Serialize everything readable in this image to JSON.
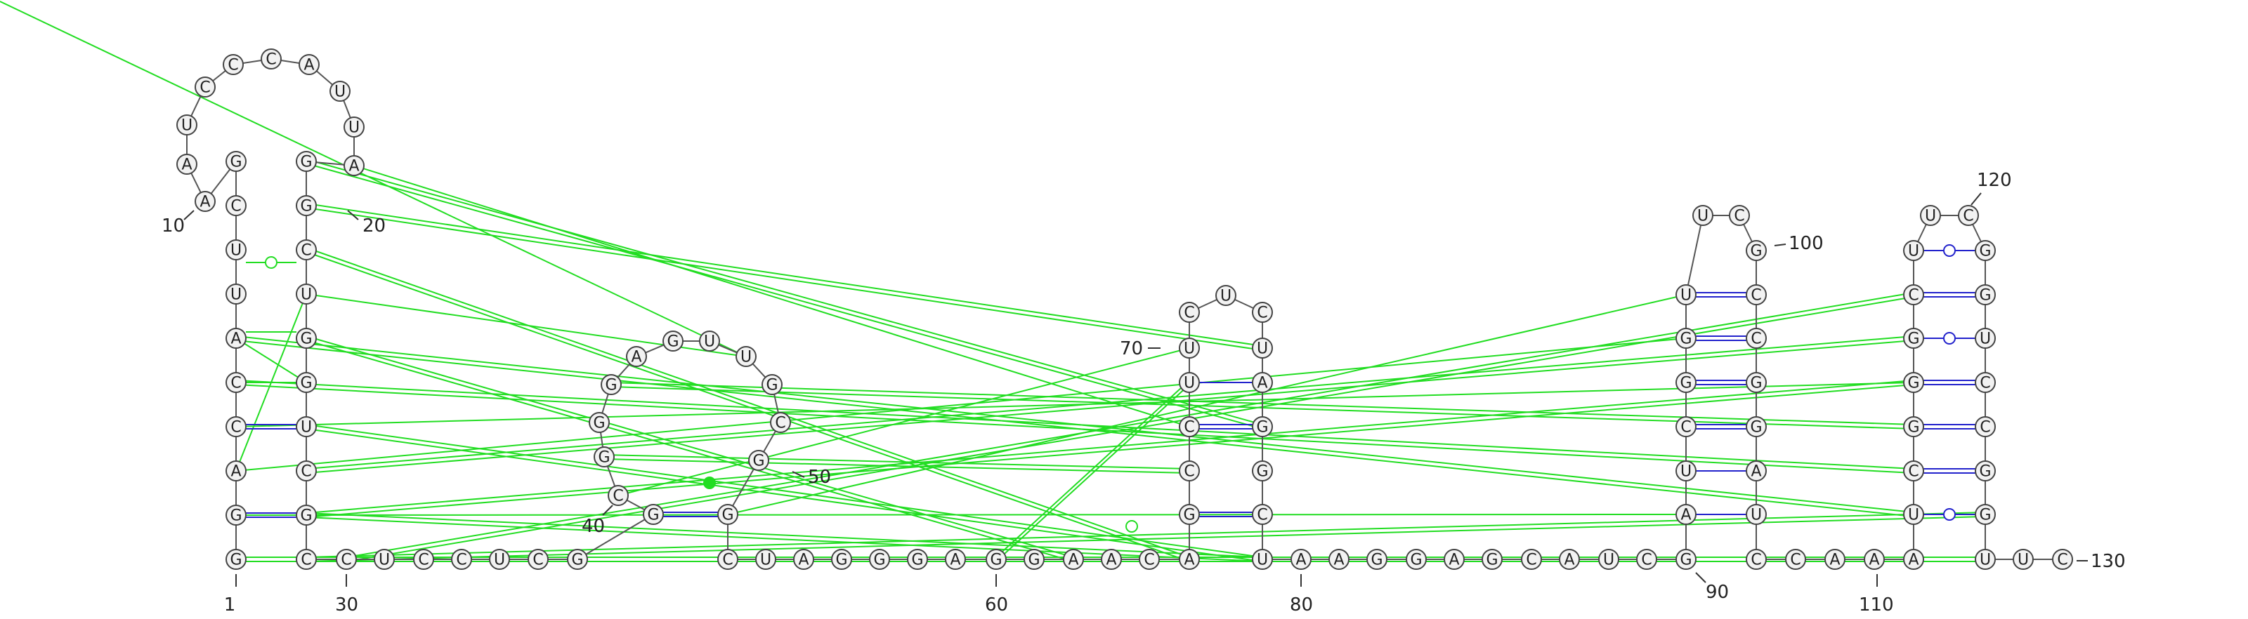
{
  "diagram": {
    "type": "rna-secondary-structure",
    "sequence_labels": {
      "n1": "1",
      "n10": "10",
      "n20": "20",
      "n30": "30",
      "n40": "40",
      "n50": "50",
      "n60": "60",
      "n70": "70",
      "n80": "80",
      "n90": "90",
      "n100": "100",
      "n110": "110",
      "n120": "120",
      "n130": "130"
    },
    "colors": {
      "backbone": "#555555",
      "canonical_pair": "#2222cc",
      "tertiary_interaction": "#22dd22",
      "nucleotide_fill": "#f2f2f2",
      "nucleotide_stroke": "#444444"
    },
    "hairpin1": {
      "left": [
        "G",
        "G",
        "A",
        "C",
        "C",
        "A",
        "U",
        "U",
        "C",
        "G"
      ],
      "loop": [
        "A",
        "A",
        "U",
        "C",
        "C",
        "C",
        "A",
        "U",
        "U",
        "A"
      ],
      "right": [
        "G",
        "G",
        "C",
        "U",
        "G",
        "G",
        "U",
        "C",
        "G",
        "C"
      ]
    },
    "bottom_row": [
      "C",
      "U",
      "C",
      "C",
      "U",
      "C",
      "G"
    ],
    "hairpin2": {
      "left": [
        "G",
        "C",
        "G",
        "G",
        "G"
      ],
      "loop": [
        "A",
        "G"
      ],
      "right": [
        "U",
        "U",
        "G",
        "C",
        "G"
      ]
    },
    "row2": [
      "C",
      "U",
      "A",
      "G",
      "G",
      "G",
      "A",
      "G",
      "G",
      "A",
      "A",
      "C",
      "A"
    ],
    "hairpin3": {
      "left": [
        "G",
        "C",
        "C",
        "U",
        "U",
        "C"
      ],
      "loop": [
        "U"
      ],
      "right": [
        "C",
        "U",
        "A",
        "G",
        "G",
        "C"
      ]
    },
    "row3": [
      "U",
      "A",
      "A",
      "G",
      "G",
      "A",
      "G",
      "C",
      "A",
      "U",
      "C",
      "G"
    ],
    "hairpin4": {
      "left": [
        "A",
        "U",
        "C",
        "G",
        "G",
        "U"
      ],
      "loop": [
        "U",
        "C"
      ],
      "right": [
        "G",
        "C",
        "C",
        "G",
        "G",
        "A",
        "U"
      ]
    },
    "row4": [
      "C",
      "C",
      "A",
      "A",
      "A"
    ],
    "hairpin5": {
      "left": [
        "U",
        "C",
        "G",
        "G",
        "G",
        "C",
        "U"
      ],
      "loop": [
        "U",
        "C"
      ],
      "right": [
        "G",
        "G",
        "U",
        "C",
        "C",
        "G",
        "G",
        "U"
      ]
    },
    "tail": [
      "U",
      "C"
    ]
  }
}
